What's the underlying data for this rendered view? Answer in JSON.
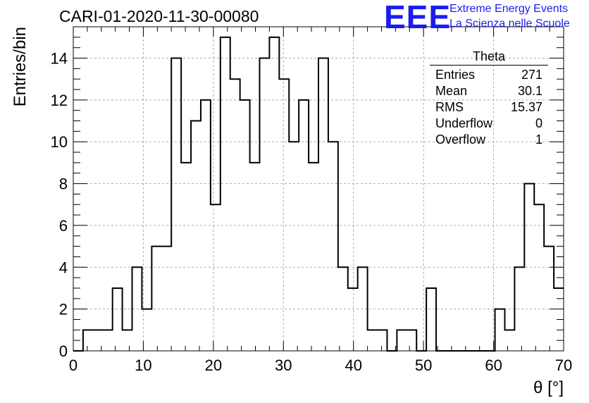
{
  "title": "CARI-01-2020-11-30-00080",
  "logo": {
    "text": "EEE",
    "line1": "Extreme Energy Events",
    "line2": "La Scienza nelle Scuole",
    "color": "#1c1cf0"
  },
  "stats": {
    "title": "Theta",
    "rows": [
      {
        "label": "Entries",
        "value": "271"
      },
      {
        "label": "Mean",
        "value": "30.1"
      },
      {
        "label": "RMS",
        "value": "15.37"
      },
      {
        "label": "Underflow",
        "value": "0"
      },
      {
        "label": "Overflow",
        "value": "1"
      }
    ]
  },
  "chart_data": {
    "type": "bar",
    "title": "CARI-01-2020-11-30-00080",
    "xlabel": "θ [°]",
    "ylabel": "Entries/bin",
    "xlim": [
      0,
      70
    ],
    "ylim": [
      0,
      15.5
    ],
    "bin_width": 1.4,
    "x_ticks": [
      0,
      10,
      20,
      30,
      40,
      50,
      60,
      70
    ],
    "y_ticks": [
      0,
      2,
      4,
      6,
      8,
      10,
      12,
      14
    ],
    "grid": true,
    "values": [
      0,
      1,
      1,
      1,
      3,
      1,
      4,
      2,
      5,
      5,
      14,
      9,
      11,
      12,
      7,
      15,
      13,
      12,
      9,
      14,
      15,
      13,
      10,
      12,
      9,
      14,
      10,
      4,
      3,
      4,
      1,
      1,
      0,
      1,
      1,
      0,
      3,
      0,
      0,
      0,
      0,
      0,
      0,
      2,
      1,
      4,
      8,
      7,
      5,
      3
    ]
  }
}
